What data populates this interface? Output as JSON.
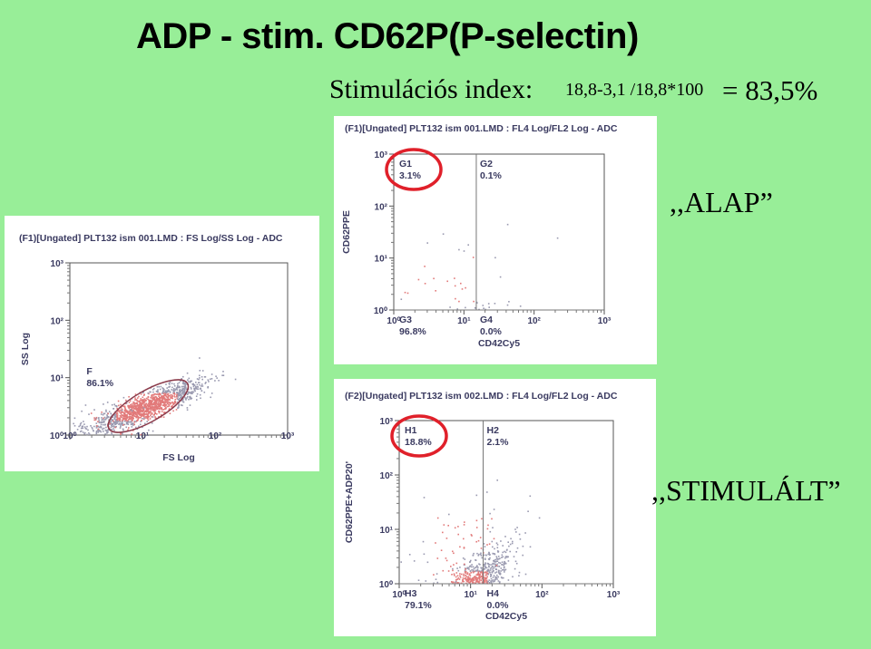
{
  "slide": {
    "title": "ADP - stim. CD62P(P-selectin)",
    "index_label": "Stimulációs index:",
    "index_formula": "18,8-3,1 /18,8*100",
    "index_result": "= 83,5%",
    "label_baseline": ",,ALAP”",
    "label_stimulated": ",,STIMULÁLT”"
  },
  "colors": {
    "background": "#98ee98",
    "dots": "#e27a7a",
    "highlight_circle": "#e0202a",
    "axis_text": "#3a3a60"
  },
  "chart_data": [
    {
      "type": "scatter",
      "title": "(F1)[Ungated] PLT132 ism 001.LMD : FS Log/SS Log - ADC",
      "xlabel": "FS Log",
      "ylabel": "SS Log",
      "xscale": "log",
      "yscale": "log",
      "xlim": [
        1,
        1000
      ],
      "ylim": [
        1,
        1000
      ],
      "xticks": [
        "10⁰",
        "10¹",
        "10²",
        "10³"
      ],
      "yticks": [
        "10⁰",
        "10¹",
        "10²",
        "10³"
      ],
      "gates": [
        {
          "name": "F",
          "percent": "86.1%",
          "shape": "ellipse",
          "center": [
            12,
            3.2
          ]
        }
      ],
      "clusters": [
        {
          "center_log": [
            1.05,
            0.5
          ],
          "spread_log": [
            0.38,
            0.22
          ],
          "correlation": 0.85,
          "count": 1400
        },
        {
          "center_log": [
            0.6,
            0.15
          ],
          "spread_log": [
            0.35,
            0.25
          ],
          "correlation": 0.2,
          "count": 80
        }
      ]
    },
    {
      "type": "scatter",
      "title": "(F1)[Ungated] PLT132 ism 001.LMD : FL4 Log/FL2 Log - ADC",
      "xlabel": "CD42Cy5",
      "ylabel": "CD62PPE",
      "xscale": "log",
      "yscale": "log",
      "xlim": [
        1,
        1000
      ],
      "ylim": [
        1,
        1000
      ],
      "xticks": [
        "10⁰",
        "10¹",
        "10²",
        "10³"
      ],
      "yticks": [
        "10⁰",
        "10¹",
        "10²",
        "10³"
      ],
      "quadrant_split": [
        15,
        1
      ],
      "gates": [
        {
          "name": "G1",
          "percent": "3.1%"
        },
        {
          "name": "G2",
          "percent": "0.1%"
        },
        {
          "name": "G3",
          "percent": "96.8%"
        },
        {
          "name": "G4",
          "percent": "0.0%"
        }
      ],
      "highlighted_gate": "G1",
      "clusters": [
        {
          "center_log": [
            0.85,
            -0.5
          ],
          "spread_log": [
            0.28,
            0.22
          ],
          "correlation": 0.7,
          "count": 1300
        },
        {
          "center_log": [
            0.2,
            -0.75
          ],
          "spread_log": [
            0.35,
            0.12
          ],
          "correlation": 0.1,
          "count": 60
        },
        {
          "center_log": [
            0.7,
            0.4
          ],
          "spread_log": [
            0.5,
            0.6
          ],
          "correlation": 0.3,
          "count": 35
        }
      ]
    },
    {
      "type": "scatter",
      "title": "(F2)[Ungated] PLT132 ism 002.LMD : FL4 Log/FL2 Log - ADC",
      "xlabel": "CD42Cy5",
      "ylabel": "CD62PPE+ADP20'",
      "xscale": "log",
      "yscale": "log",
      "xlim": [
        1,
        1000
      ],
      "ylim": [
        1,
        1000
      ],
      "xticks": [
        "10⁰",
        "10¹",
        "10²",
        "10³"
      ],
      "yticks": [
        "10⁰",
        "10¹",
        "10²",
        "10³"
      ],
      "quadrant_split": [
        15,
        1
      ],
      "gates": [
        {
          "name": "H1",
          "percent": "18.8%"
        },
        {
          "name": "H2",
          "percent": "2.1%"
        },
        {
          "name": "H3",
          "percent": "79.1%"
        },
        {
          "name": "H4",
          "percent": "0.0%"
        }
      ],
      "highlighted_gate": "H1",
      "clusters": [
        {
          "center_log": [
            0.9,
            -0.2
          ],
          "spread_log": [
            0.3,
            0.4
          ],
          "correlation": 0.8,
          "count": 1500
        },
        {
          "center_log": [
            0.2,
            -0.75
          ],
          "spread_log": [
            0.35,
            0.12
          ],
          "correlation": 0.1,
          "count": 80
        },
        {
          "center_log": [
            0.9,
            0.7
          ],
          "spread_log": [
            0.45,
            0.5
          ],
          "correlation": 0.4,
          "count": 80
        }
      ]
    }
  ]
}
